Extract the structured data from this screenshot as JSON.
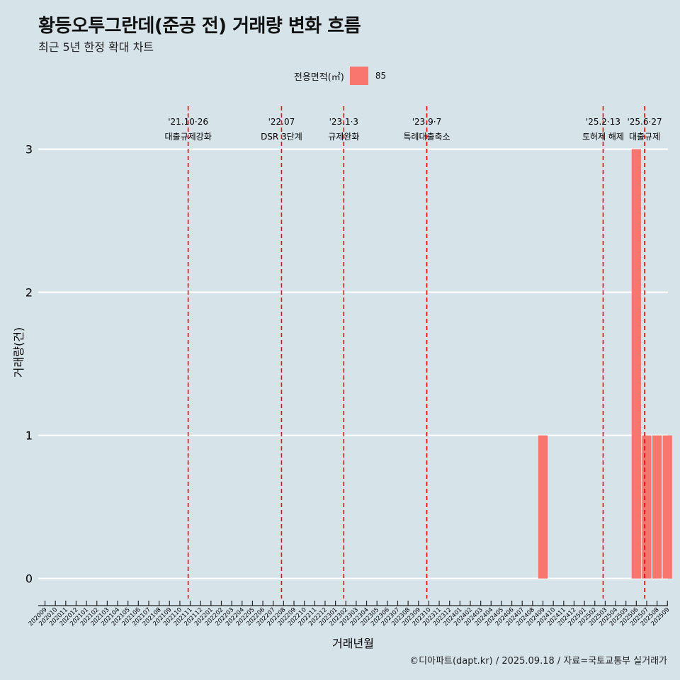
{
  "title": "황등오투그란데(준공 전) 거래량 변화 흐름",
  "subtitle": "최근 5년 한정 확대 차트",
  "legend": {
    "title": "전용면적(㎡)",
    "label": "85",
    "color": "#f8766d"
  },
  "caption": "©디아파트(dapt.kr) / 2025.09.18 / 자료=국토교통부 실거래가",
  "colors": {
    "background": "#d6e4ea",
    "bar": "#f8766d",
    "vline": "#ff0000",
    "grid": "#ffffff"
  },
  "chart_data": {
    "type": "bar",
    "title": "황등오투그란데(준공 전) 거래량 변화 흐름",
    "xlabel": "거래년월",
    "ylabel": "거래량(건)",
    "ylim": [
      -0.14,
      3.3
    ],
    "yticks": [
      0,
      1,
      2,
      3
    ],
    "categories": [
      "202009",
      "202010",
      "202011",
      "202012",
      "202101",
      "202102",
      "202103",
      "202104",
      "202105",
      "202106",
      "202107",
      "202108",
      "202109",
      "202110",
      "202111",
      "202112",
      "202201",
      "202202",
      "202203",
      "202204",
      "202205",
      "202206",
      "202207",
      "202208",
      "202209",
      "202210",
      "202211",
      "202212",
      "202301",
      "202302",
      "202303",
      "202304",
      "202305",
      "202306",
      "202307",
      "202308",
      "202309",
      "202310",
      "202311",
      "202312",
      "202401",
      "202402",
      "202403",
      "202404",
      "202405",
      "202406",
      "202407",
      "202408",
      "202409",
      "202410",
      "202411",
      "202412",
      "202501",
      "202502",
      "202503",
      "202504",
      "202505",
      "202506",
      "202507",
      "202508",
      "202509"
    ],
    "series": [
      {
        "name": "85",
        "values": [
          0,
          0,
          0,
          0,
          0,
          0,
          0,
          0,
          0,
          0,
          0,
          0,
          0,
          0,
          0,
          0,
          0,
          0,
          0,
          0,
          0,
          0,
          0,
          0,
          0,
          0,
          0,
          0,
          0,
          0,
          0,
          0,
          0,
          0,
          0,
          0,
          0,
          0,
          0,
          0,
          0,
          0,
          0,
          0,
          0,
          0,
          0,
          0,
          1,
          0,
          0,
          0,
          0,
          0,
          0,
          0,
          0,
          3,
          1,
          1,
          1
        ]
      }
    ],
    "annotations": [
      {
        "pos": 13.8,
        "date": "'21.10·26",
        "label": "대출규제강화"
      },
      {
        "pos": 22.8,
        "date": "'22.07",
        "label": "DSR 3단계"
      },
      {
        "pos": 28.8,
        "date": "'23.1·3",
        "label": "규제완화"
      },
      {
        "pos": 36.8,
        "date": "'23.9·7",
        "label": "특례대출축소"
      },
      {
        "pos": 53.8,
        "date": "'25.2·13",
        "label": "토허제 해제"
      },
      {
        "pos": 57.8,
        "date": "'25.6·27",
        "label": "대출규제"
      }
    ]
  }
}
